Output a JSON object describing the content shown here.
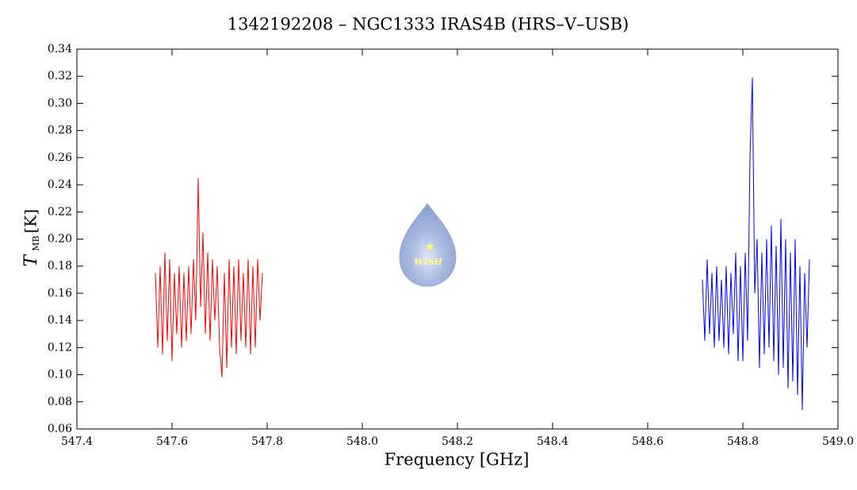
{
  "chart_data": {
    "type": "line",
    "title": "1342192208 – NGC1333 IRAS4B (HRS–V–USB)",
    "x_label": "Frequency [GHz]",
    "y_label": {
      "symbol": "T",
      "subscript": "MB",
      "unit": "[K]"
    },
    "logo_text": "WISH",
    "xlim": [
      547.4,
      549.0
    ],
    "xticks": [
      547.4,
      547.6,
      547.8,
      {
        "value": 548,
        "label": "548.0"
      },
      548.2,
      548.4,
      548.6,
      548.8,
      {
        "value": 549,
        "label": "549.0"
      }
    ],
    "ylim": [
      0.06,
      0.34
    ],
    "yticks": [
      0.06,
      0.08,
      {
        "value": 0.1,
        "label": "0.10"
      },
      0.12,
      0.14,
      0.16,
      0.18,
      {
        "value": 0.2,
        "label": "0.20"
      },
      0.22,
      0.24,
      0.26,
      0.28,
      {
        "value": 0.3,
        "label": "0.30"
      },
      0.32,
      0.34
    ],
    "grid": false,
    "series": [
      {
        "color": "#ff0000",
        "x": [
          547.565,
          547.57,
          547.575,
          547.58,
          547.585,
          547.59,
          547.595,
          547.6,
          547.605,
          547.61,
          547.615,
          547.62,
          547.625,
          547.63,
          547.635,
          547.64,
          547.645,
          547.65,
          547.655,
          547.66,
          547.665,
          547.67,
          547.675,
          547.68,
          547.685,
          547.69,
          547.695,
          547.7,
          547.705,
          547.71,
          547.715,
          547.72,
          547.725,
          547.73,
          547.735,
          547.74,
          547.745,
          547.75,
          547.755,
          547.76,
          547.765,
          547.77,
          547.775,
          547.78,
          547.785,
          547.79
        ],
        "values": [
          0.175,
          0.12,
          0.18,
          0.115,
          0.19,
          0.125,
          0.185,
          0.11,
          0.175,
          0.13,
          0.18,
          0.12,
          0.175,
          0.125,
          0.18,
          0.13,
          0.185,
          0.14,
          0.245,
          0.15,
          0.205,
          0.13,
          0.19,
          0.125,
          0.185,
          0.14,
          0.18,
          0.12,
          0.098,
          0.175,
          0.105,
          0.185,
          0.12,
          0.18,
          0.115,
          0.185,
          0.125,
          0.175,
          0.12,
          0.185,
          0.115,
          0.18,
          0.12,
          0.185,
          0.14,
          0.175
        ]
      },
      {
        "color": "#0000ff",
        "x": [
          548.715,
          548.72,
          548.725,
          548.73,
          548.735,
          548.74,
          548.745,
          548.75,
          548.755,
          548.76,
          548.765,
          548.77,
          548.775,
          548.78,
          548.785,
          548.79,
          548.795,
          548.8,
          548.805,
          548.81,
          548.815,
          548.82,
          548.825,
          548.83,
          548.835,
          548.84,
          548.845,
          548.85,
          548.855,
          548.86,
          548.865,
          548.87,
          548.875,
          548.88,
          548.885,
          548.89,
          548.895,
          548.9,
          548.905,
          548.91,
          548.915,
          548.92,
          548.925,
          548.93,
          548.935,
          548.94
        ],
        "values": [
          0.17,
          0.125,
          0.185,
          0.13,
          0.175,
          0.12,
          0.18,
          0.125,
          0.17,
          0.12,
          0.18,
          0.115,
          0.175,
          0.13,
          0.19,
          0.11,
          0.18,
          0.11,
          0.19,
          0.125,
          0.26,
          0.319,
          0.16,
          0.2,
          0.105,
          0.19,
          0.115,
          0.2,
          0.12,
          0.21,
          0.11,
          0.195,
          0.1,
          0.215,
          0.105,
          0.2,
          0.09,
          0.19,
          0.095,
          0.2,
          0.085,
          0.18,
          0.074,
          0.175,
          0.12,
          0.185
        ]
      }
    ]
  }
}
